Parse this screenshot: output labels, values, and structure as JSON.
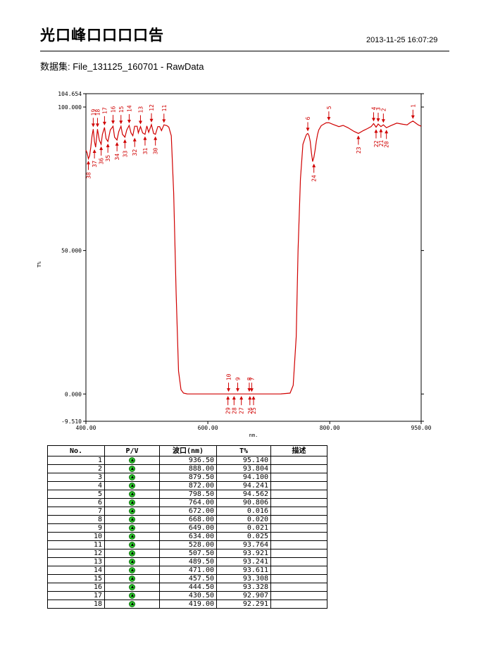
{
  "header": {
    "title": "光口峰口口口口告",
    "timestamp": "2013-11-25   16:07:29",
    "dataset": "数据集: File_131125_160701 - RawData"
  },
  "chart_data": {
    "type": "line",
    "xlabel": "nm.",
    "ylabel": "T%",
    "xlim": [
      400,
      950
    ],
    "ylim": [
      -9.51,
      104.654
    ],
    "xticks": [
      "400.00",
      "600.00",
      "800.00",
      "950.00"
    ],
    "yticks": [
      "104.654",
      "100.000",
      "50.000",
      "0.000",
      "-9.510"
    ],
    "color": "#d00000",
    "series": [
      {
        "x": [
          400,
          402,
          404,
          406,
          408,
          410,
          412,
          414,
          416,
          419,
          422,
          425,
          427,
          430.5,
          433,
          436,
          440,
          444.5,
          447,
          451,
          454,
          457.5,
          460,
          464,
          467,
          471,
          474,
          477,
          480,
          484,
          486,
          489.5,
          493,
          497,
          500,
          503,
          507.5,
          511,
          514,
          518,
          521,
          524,
          528,
          533,
          536,
          540,
          544,
          548,
          552,
          556,
          560,
          566,
          575,
          600,
          650,
          700,
          720,
          735,
          740,
          745,
          748,
          752,
          756,
          760,
          762,
          764,
          766,
          768,
          770,
          772,
          774,
          776,
          778,
          780,
          782,
          786,
          790,
          794,
          798.5,
          805,
          815,
          822,
          830,
          840,
          847,
          855,
          862,
          868,
          872,
          876,
          879.5,
          884,
          888,
          893,
          900,
          910,
          920,
          927,
          932,
          936.5,
          940,
          945,
          950
        ],
        "y": [
          85,
          84,
          82,
          83,
          86,
          90,
          92.3,
          88,
          86,
          92.3,
          88.5,
          87,
          90.5,
          92.9,
          89,
          88,
          92,
          93.3,
          89.5,
          88.5,
          91.5,
          93.3,
          90.5,
          89.5,
          92,
          93.6,
          91,
          90,
          93.3,
          93.3,
          91,
          93.2,
          91,
          90.5,
          93.4,
          91.2,
          93.9,
          90.8,
          90.5,
          93.2,
          93.2,
          91.8,
          93.8,
          93.5,
          93,
          90,
          70,
          35,
          8,
          1.5,
          0.3,
          0.05,
          0.02,
          0.02,
          0.02,
          0.02,
          0.05,
          0.3,
          3,
          20,
          50,
          75,
          87,
          89.5,
          90.5,
          90.8,
          90,
          88,
          84,
          81,
          82.5,
          85,
          88,
          90.5,
          92,
          93.5,
          94,
          94.5,
          94.56,
          94,
          93.2,
          93.6,
          92.8,
          91.5,
          90.8,
          91.8,
          92.5,
          93.2,
          94.24,
          93,
          94.1,
          93.2,
          93.8,
          92.8,
          93.5,
          94.4,
          94,
          93.8,
          94.6,
          95.14,
          94.6,
          93.8,
          93.3
        ]
      }
    ],
    "markers_top": [
      {
        "label": "1",
        "x": 936.5,
        "y": 95.14
      },
      {
        "label": "2",
        "x": 888,
        "y": 93.804
      },
      {
        "label": "3",
        "x": 879.5,
        "y": 94.1
      },
      {
        "label": "4",
        "x": 872,
        "y": 94.241
      },
      {
        "label": "5",
        "x": 798.5,
        "y": 94.562
      },
      {
        "label": "6",
        "x": 764,
        "y": 90.806
      },
      {
        "label": "7",
        "x": 672,
        "y": 0.016
      },
      {
        "label": "8",
        "x": 668,
        "y": 0.02
      },
      {
        "label": "9",
        "x": 649,
        "y": 0.021
      },
      {
        "label": "10",
        "x": 634,
        "y": 0.025
      },
      {
        "label": "11",
        "x": 528,
        "y": 93.764
      },
      {
        "label": "12",
        "x": 507.5,
        "y": 93.921
      },
      {
        "label": "13",
        "x": 489.5,
        "y": 93.241
      },
      {
        "label": "14",
        "x": 471,
        "y": 93.611
      },
      {
        "label": "15",
        "x": 457.5,
        "y": 93.308
      },
      {
        "label": "16",
        "x": 444.5,
        "y": 93.328
      },
      {
        "label": "17",
        "x": 430.5,
        "y": 92.907
      },
      {
        "label": "18",
        "x": 419,
        "y": 92.291
      },
      {
        "label": "19",
        "x": 412,
        "y": 92.3
      }
    ],
    "markers_bottom": [
      {
        "label": "20",
        "x": 893,
        "y": 92.8
      },
      {
        "label": "21",
        "x": 884,
        "y": 93.2
      },
      {
        "label": "22",
        "x": 876,
        "y": 93.0
      },
      {
        "label": "23",
        "x": 847,
        "y": 90.8
      },
      {
        "label": "24",
        "x": 774,
        "y": 81
      },
      {
        "label": "25",
        "x": 675,
        "y": 0.02
      },
      {
        "label": "26",
        "x": 669,
        "y": 0.02
      },
      {
        "label": "27",
        "x": 655,
        "y": 0.02
      },
      {
        "label": "28",
        "x": 643,
        "y": 0.02
      },
      {
        "label": "29",
        "x": 633,
        "y": 0.02
      },
      {
        "label": "30",
        "x": 514,
        "y": 90.5
      },
      {
        "label": "31",
        "x": 497,
        "y": 90.5
      },
      {
        "label": "32",
        "x": 480,
        "y": 90
      },
      {
        "label": "33",
        "x": 464,
        "y": 89.5
      },
      {
        "label": "34",
        "x": 451,
        "y": 88.5
      },
      {
        "label": "35",
        "x": 436,
        "y": 88
      },
      {
        "label": "36",
        "x": 425,
        "y": 87
      },
      {
        "label": "37",
        "x": 414,
        "y": 86
      },
      {
        "label": "38",
        "x": 404,
        "y": 82
      }
    ]
  },
  "table": {
    "headers": [
      "No.",
      "P/V",
      "波口(nm)",
      "T%",
      "描述"
    ],
    "pv_icon": "peak-up-icon",
    "rows": [
      {
        "no": "1",
        "wl": "936.50",
        "t": "95.140"
      },
      {
        "no": "2",
        "wl": "888.00",
        "t": "93.804"
      },
      {
        "no": "3",
        "wl": "879.50",
        "t": "94.100"
      },
      {
        "no": "4",
        "wl": "872.00",
        "t": "94.241"
      },
      {
        "no": "5",
        "wl": "798.50",
        "t": "94.562"
      },
      {
        "no": "6",
        "wl": "764.00",
        "t": "90.806"
      },
      {
        "no": "7",
        "wl": "672.00",
        "t": "0.016"
      },
      {
        "no": "8",
        "wl": "668.00",
        "t": "0.020"
      },
      {
        "no": "9",
        "wl": "649.00",
        "t": "0.021"
      },
      {
        "no": "10",
        "wl": "634.00",
        "t": "0.025"
      },
      {
        "no": "11",
        "wl": "528.00",
        "t": "93.764"
      },
      {
        "no": "12",
        "wl": "507.50",
        "t": "93.921"
      },
      {
        "no": "13",
        "wl": "489.50",
        "t": "93.241"
      },
      {
        "no": "14",
        "wl": "471.00",
        "t": "93.611"
      },
      {
        "no": "15",
        "wl": "457.50",
        "t": "93.308"
      },
      {
        "no": "16",
        "wl": "444.50",
        "t": "93.328"
      },
      {
        "no": "17",
        "wl": "430.50",
        "t": "92.907"
      },
      {
        "no": "18",
        "wl": "419.00",
        "t": "92.291"
      }
    ]
  }
}
